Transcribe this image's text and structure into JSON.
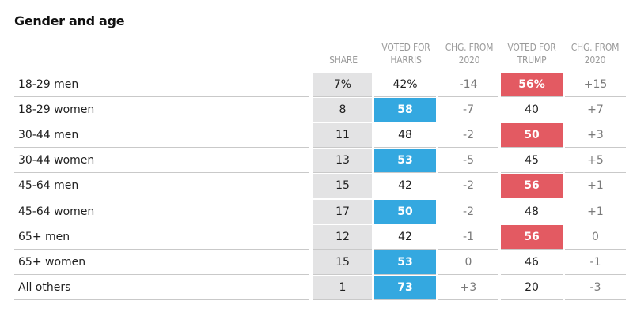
{
  "title": "Gender and age",
  "headers": {
    "share": [
      "",
      "SHARE"
    ],
    "harris": [
      "VOTED FOR",
      "HARRIS"
    ],
    "chg_harris": [
      "CHG. FROM",
      "2020"
    ],
    "trump": [
      "VOTED FOR",
      "TRUMP"
    ],
    "chg_trump": [
      "CHG. FROM",
      "2020"
    ]
  },
  "colors": {
    "harris_win": "#34a8e0",
    "trump_win": "#e35a62",
    "share_bg": "#e3e3e4"
  },
  "chart_data": {
    "type": "table",
    "title": "Gender and age",
    "columns": [
      "SHARE",
      "VOTED FOR HARRIS",
      "CHG. FROM 2020",
      "VOTED FOR TRUMP",
      "CHG. FROM 2020"
    ],
    "rows": [
      {
        "label": "18-29 men",
        "share": "7%",
        "harris": "42%",
        "chg_harris": "-14",
        "trump": "56%",
        "chg_trump": "+15",
        "winner": "trump"
      },
      {
        "label": "18-29 women",
        "share": "8",
        "harris": "58",
        "chg_harris": "-7",
        "trump": "40",
        "chg_trump": "+7",
        "winner": "harris"
      },
      {
        "label": "30-44 men",
        "share": "11",
        "harris": "48",
        "chg_harris": "-2",
        "trump": "50",
        "chg_trump": "+3",
        "winner": "trump"
      },
      {
        "label": "30-44 women",
        "share": "13",
        "harris": "53",
        "chg_harris": "-5",
        "trump": "45",
        "chg_trump": "+5",
        "winner": "harris"
      },
      {
        "label": "45-64 men",
        "share": "15",
        "harris": "42",
        "chg_harris": "-2",
        "trump": "56",
        "chg_trump": "+1",
        "winner": "trump"
      },
      {
        "label": "45-64 women",
        "share": "17",
        "harris": "50",
        "chg_harris": "-2",
        "trump": "48",
        "chg_trump": "+1",
        "winner": "harris"
      },
      {
        "label": "65+ men",
        "share": "12",
        "harris": "42",
        "chg_harris": "-1",
        "trump": "56",
        "chg_trump": "0",
        "winner": "trump"
      },
      {
        "label": "65+ women",
        "share": "15",
        "harris": "53",
        "chg_harris": "0",
        "trump": "46",
        "chg_trump": "-1",
        "winner": "harris"
      },
      {
        "label": "All others",
        "share": "1",
        "harris": "73",
        "chg_harris": "+3",
        "trump": "20",
        "chg_trump": "-3",
        "winner": "harris"
      }
    ]
  }
}
